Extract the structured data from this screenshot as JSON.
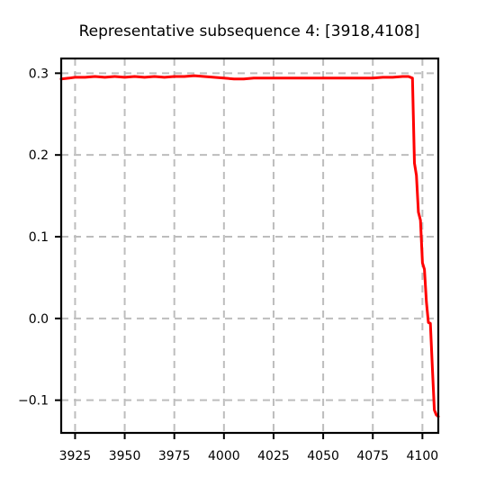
{
  "chart_data": {
    "type": "line",
    "title": "Representative subsequence 4: [3918,4108]",
    "xlabel": "",
    "ylabel": "",
    "xlim": [
      3918,
      4108
    ],
    "ylim": [
      -0.14,
      0.318
    ],
    "grid": true,
    "x_ticks": [
      3925,
      3950,
      3975,
      4000,
      4025,
      4050,
      4075,
      4100
    ],
    "x_tick_labels": [
      "3925",
      "3950",
      "3975",
      "4000",
      "4025",
      "4050",
      "4075",
      "4100"
    ],
    "y_ticks": [
      -0.1,
      0.0,
      0.1,
      0.2,
      0.3
    ],
    "y_tick_labels": [
      "−0.1",
      "0.0",
      "0.1",
      "0.2",
      "0.3"
    ],
    "series": [
      {
        "color": "#ff0000",
        "x": [
          3918,
          3922,
          3925,
          3930,
          3935,
          3940,
          3945,
          3950,
          3955,
          3960,
          3965,
          3970,
          3975,
          3980,
          3985,
          3990,
          3995,
          4000,
          4005,
          4010,
          4015,
          4020,
          4025,
          4030,
          4035,
          4040,
          4045,
          4050,
          4055,
          4060,
          4065,
          4070,
          4075,
          4080,
          4085,
          4090,
          4093,
          4095,
          4096,
          4097,
          4098,
          4099,
          4100,
          4101,
          4102,
          4103,
          4104,
          4105,
          4106,
          4107,
          4108
        ],
        "y": [
          0.293,
          0.294,
          0.295,
          0.295,
          0.296,
          0.295,
          0.296,
          0.295,
          0.296,
          0.295,
          0.296,
          0.295,
          0.296,
          0.296,
          0.297,
          0.296,
          0.295,
          0.294,
          0.293,
          0.293,
          0.294,
          0.294,
          0.294,
          0.294,
          0.294,
          0.294,
          0.294,
          0.294,
          0.294,
          0.294,
          0.294,
          0.294,
          0.294,
          0.295,
          0.295,
          0.296,
          0.296,
          0.294,
          0.19,
          0.175,
          0.13,
          0.12,
          0.068,
          0.06,
          0.02,
          -0.005,
          -0.006,
          -0.06,
          -0.112,
          -0.118,
          -0.12
        ]
      }
    ]
  }
}
